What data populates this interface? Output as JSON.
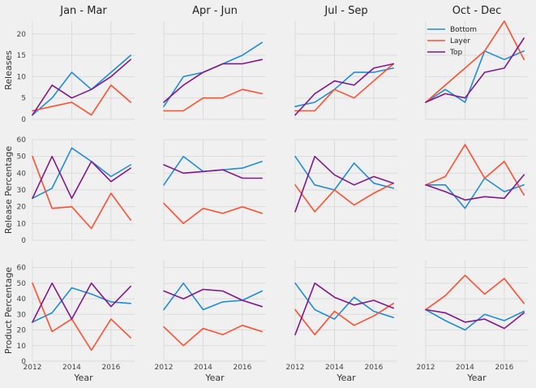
{
  "colors": {
    "Bottom": "#1f8dd6",
    "Layer": "#fc4f30",
    "Top": "#81188b"
  },
  "legend": {
    "location": "upper-right",
    "panel": "Oct - Dec / Releases",
    "entries": [
      "Bottom",
      "Layer",
      "Top"
    ]
  },
  "chart_data": {
    "type": "line",
    "grid": true,
    "layout": "3 rows x 4 columns small multiples",
    "columns": [
      "Jan - Mar",
      "Apr - Jun",
      "Jul - Sep",
      "Oct - Dec"
    ],
    "xlabel": "Year",
    "x": [
      2012,
      2013,
      2014,
      2015,
      2016,
      2017
    ],
    "xticks": [
      2012,
      2014,
      2016
    ],
    "rows": [
      {
        "ylabel": "Releases",
        "ylim": [
          0,
          23
        ],
        "yticks": [
          0,
          5,
          10,
          15,
          20
        ],
        "panels": [
          {
            "Bottom": [
              1,
              5,
              11,
              7,
              11,
              15
            ],
            "Layer": [
              2,
              3,
              4,
              1,
              8,
              4
            ],
            "Top": [
              1,
              8,
              5,
              7,
              10,
              14
            ]
          },
          {
            "Bottom": [
              3,
              10,
              11,
              13,
              15,
              18
            ],
            "Layer": [
              2,
              2,
              5,
              5,
              7,
              6
            ],
            "Top": [
              4,
              8,
              11,
              13,
              13,
              14
            ]
          },
          {
            "Bottom": [
              3,
              4,
              7,
              11,
              11,
              12
            ],
            "Layer": [
              2,
              2,
              7,
              5,
              9,
              13
            ],
            "Top": [
              1,
              6,
              9,
              8,
              12,
              13
            ]
          },
          {
            "Bottom": [
              4,
              7,
              4,
              16,
              14,
              16
            ],
            "Layer": [
              4,
              8,
              12,
              16,
              23,
              14
            ],
            "Top": [
              4,
              6,
              5,
              11,
              12,
              19
            ]
          }
        ]
      },
      {
        "ylabel": "Release Percentage",
        "ylim": [
          0,
          60
        ],
        "yticks": [
          0,
          10,
          20,
          30,
          40,
          50,
          60
        ],
        "panels": [
          {
            "Bottom": [
              25,
              31,
              55,
              47,
              38,
              45
            ],
            "Layer": [
              50,
              19,
              20,
              7,
              28,
              12
            ],
            "Top": [
              25,
              50,
              25,
              47,
              35,
              43
            ]
          },
          {
            "Bottom": [
              33,
              50,
              41,
              42,
              43,
              47
            ],
            "Layer": [
              22,
              10,
              19,
              16,
              20,
              16
            ],
            "Top": [
              45,
              40,
              41,
              42,
              37,
              37
            ]
          },
          {
            "Bottom": [
              50,
              33,
              30,
              46,
              34,
              31
            ],
            "Layer": [
              33,
              17,
              30,
              21,
              28,
              34
            ],
            "Top": [
              17,
              50,
              39,
              33,
              38,
              34
            ]
          },
          {
            "Bottom": [
              33,
              33,
              19,
              37,
              29,
              33
            ],
            "Layer": [
              33,
              38,
              57,
              37,
              47,
              27
            ],
            "Top": [
              33,
              29,
              24,
              26,
              25,
              39
            ]
          }
        ]
      },
      {
        "ylabel": "Product Percentage",
        "ylim": [
          0,
          65
        ],
        "yticks": [
          0,
          10,
          20,
          30,
          40,
          50,
          60
        ],
        "panels": [
          {
            "Bottom": [
              25,
              31,
              47,
              43,
              38,
              37
            ],
            "Layer": [
              50,
              19,
              27,
              7,
              27,
              15
            ],
            "Top": [
              25,
              50,
              27,
              50,
              35,
              48
            ]
          },
          {
            "Bottom": [
              33,
              50,
              33,
              38,
              39,
              45
            ],
            "Layer": [
              22,
              10,
              21,
              17,
              23,
              19
            ],
            "Top": [
              45,
              40,
              46,
              45,
              39,
              35
            ]
          },
          {
            "Bottom": [
              50,
              33,
              27,
              41,
              32,
              28
            ],
            "Layer": [
              33,
              17,
              32,
              23,
              29,
              37
            ],
            "Top": [
              17,
              50,
              41,
              36,
              39,
              34
            ]
          },
          {
            "Bottom": [
              33,
              26,
              20,
              30,
              26,
              32
            ],
            "Layer": [
              33,
              42,
              55,
              43,
              53,
              37
            ],
            "Top": [
              33,
              31,
              25,
              27,
              21,
              31
            ]
          }
        ]
      }
    ]
  }
}
